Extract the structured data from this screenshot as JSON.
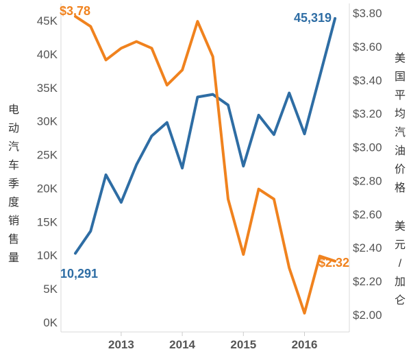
{
  "chart_data": {
    "type": "line",
    "x": [
      "2012-Q2",
      "2012-Q3",
      "2012-Q4",
      "2013-Q1",
      "2013-Q2",
      "2013-Q3",
      "2013-Q4",
      "2014-Q1",
      "2014-Q2",
      "2014-Q3",
      "2014-Q4",
      "2015-Q1",
      "2015-Q2",
      "2015-Q3",
      "2015-Q4",
      "2016-Q1",
      "2016-Q2",
      "2016-Q3"
    ],
    "x_tick_labels": [
      "2013",
      "2014",
      "2015",
      "2016"
    ],
    "y_left": {
      "title": "电动汽车季度销售量",
      "ticks": [
        "0K",
        "5K",
        "10K",
        "15K",
        "20K",
        "25K",
        "30K",
        "35K",
        "40K",
        "45K"
      ],
      "lim": [
        0,
        46000
      ]
    },
    "y_right": {
      "title_lines": [
        "美国平均汽油价格",
        "美元 / 加仑"
      ],
      "ticks": [
        "$2.00",
        "$2.20",
        "$2.40",
        "$2.60",
        "$2.80",
        "$3.00",
        "$3.20",
        "$3.40",
        "$3.60",
        "$3.80"
      ],
      "lim": [
        2.0,
        3.82
      ]
    },
    "series": [
      {
        "axis": "left",
        "color": "#2e6da4",
        "values": [
          10291,
          13600,
          22000,
          17900,
          23500,
          27800,
          29800,
          23000,
          33600,
          34000,
          32400,
          23300,
          30900,
          28000,
          34200,
          28100,
          36700,
          45319
        ],
        "start_label": "10,291",
        "end_label": "45,319"
      },
      {
        "axis": "right",
        "color": "#f0821e",
        "values": [
          3.78,
          3.72,
          3.52,
          3.59,
          3.63,
          3.59,
          3.37,
          3.46,
          3.75,
          3.54,
          2.69,
          2.36,
          2.75,
          2.69,
          2.28,
          2.01,
          2.35,
          2.32
        ],
        "start_label": "$3.78",
        "end_label": "$2.32"
      }
    ],
    "grid": false,
    "legend": "none"
  }
}
